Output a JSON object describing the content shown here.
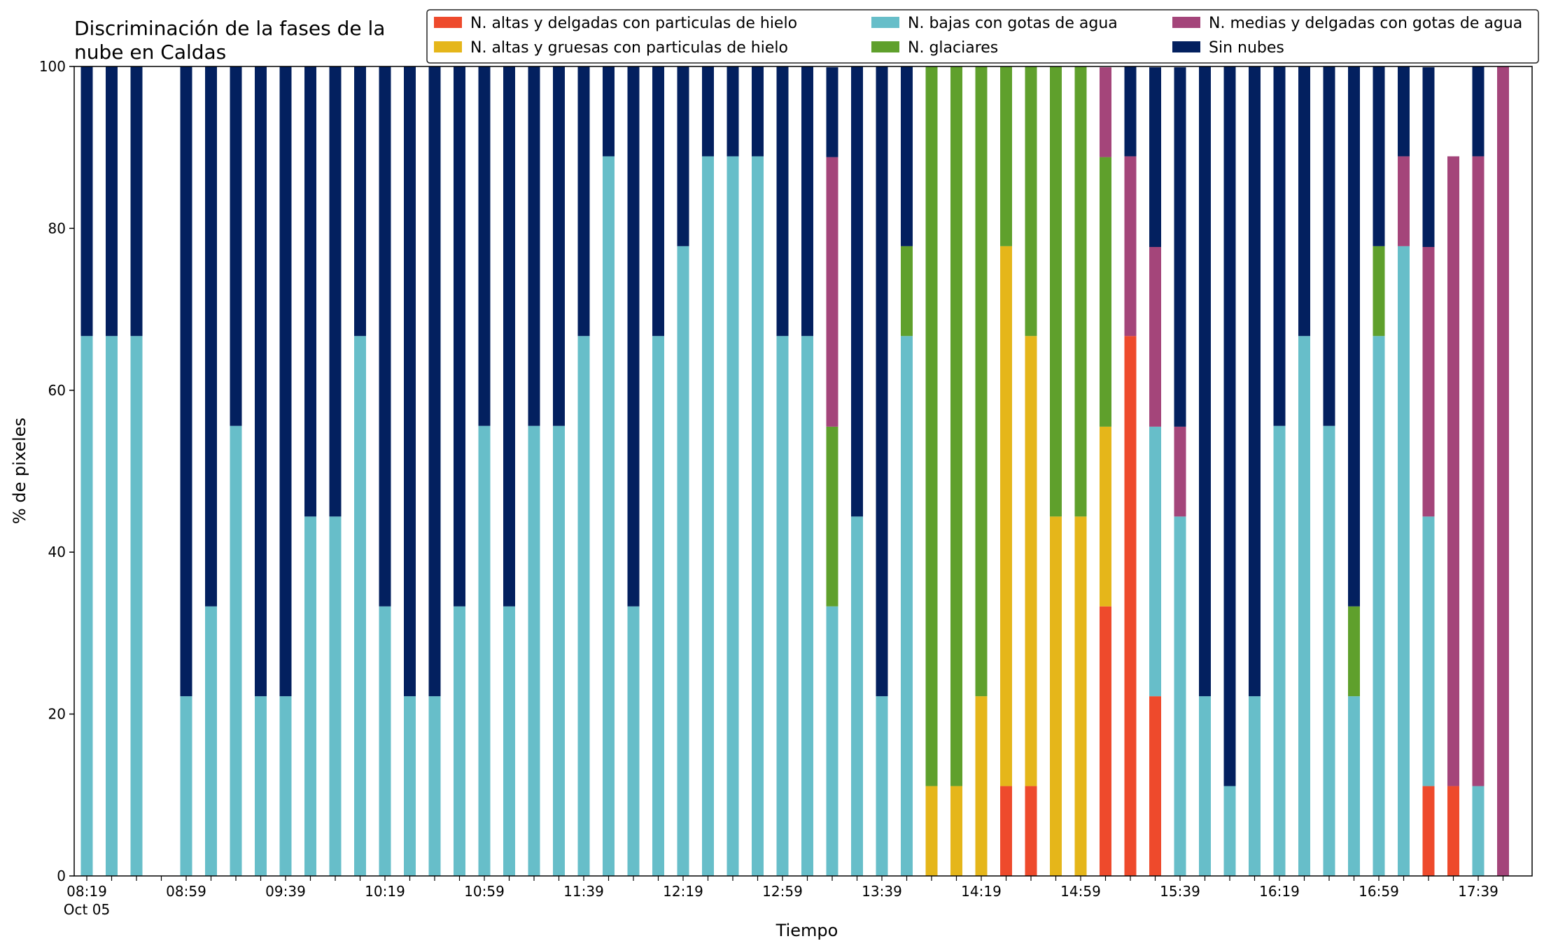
{
  "chart_data": {
    "type": "bar",
    "stacked": true,
    "title_lines": [
      "Discriminación de la fases de la",
      "nube en Caldas"
    ],
    "xlabel": "Tiempo",
    "ylabel": "% de pixeles",
    "ylim": [
      0,
      100
    ],
    "yticks": [
      0,
      20,
      40,
      60,
      80,
      100
    ],
    "xtick_labels": [
      {
        "index": 0,
        "label": "08:19",
        "sublabel": "Oct 05"
      },
      {
        "index": 4,
        "label": "08:59"
      },
      {
        "index": 8,
        "label": "09:39"
      },
      {
        "index": 12,
        "label": "10:19"
      },
      {
        "index": 16,
        "label": "10:59"
      },
      {
        "index": 20,
        "label": "11:39"
      },
      {
        "index": 24,
        "label": "12:19"
      },
      {
        "index": 28,
        "label": "12:59"
      },
      {
        "index": 32,
        "label": "13:39"
      },
      {
        "index": 36,
        "label": "14:19"
      },
      {
        "index": 40,
        "label": "14:59"
      },
      {
        "index": 44,
        "label": "15:39"
      },
      {
        "index": 48,
        "label": "16:19"
      },
      {
        "index": 52,
        "label": "16:59"
      },
      {
        "index": 56,
        "label": "17:39"
      }
    ],
    "categories": [
      "08:19",
      "08:29",
      "08:39",
      "08:49",
      "08:59",
      "09:09",
      "09:19",
      "09:29",
      "09:39",
      "09:49",
      "09:59",
      "10:09",
      "10:19",
      "10:29",
      "10:39",
      "10:49",
      "10:59",
      "11:09",
      "11:19",
      "11:29",
      "11:39",
      "11:49",
      "11:59",
      "12:09",
      "12:19",
      "12:29",
      "12:39",
      "12:49",
      "12:59",
      "13:09",
      "13:19",
      "13:29",
      "13:39",
      "13:49",
      "13:59",
      "14:09",
      "14:19",
      "14:29",
      "14:39",
      "14:49",
      "14:59",
      "15:09",
      "15:19",
      "15:29",
      "15:39",
      "15:49",
      "15:59",
      "16:09",
      "16:19",
      "16:29",
      "16:39",
      "16:49",
      "16:59",
      "17:09",
      "17:19",
      "17:29",
      "17:39",
      "17:49"
    ],
    "legend_position": "top-right",
    "series": [
      {
        "name": "N. altas y delgadas con particulas de hielo",
        "color": "#ee4a2c",
        "values": [
          0,
          0,
          0,
          0,
          0,
          0,
          0,
          0,
          0,
          0,
          0,
          0,
          0,
          0,
          0,
          0,
          0,
          0,
          0,
          0,
          0,
          0,
          0,
          0,
          0,
          0,
          0,
          0,
          0,
          0,
          0,
          0,
          0,
          0,
          0,
          0,
          0,
          11.1,
          11.1,
          0,
          0,
          33.3,
          66.7,
          22.2,
          0,
          0,
          0,
          0,
          0,
          0,
          0,
          0,
          0,
          0,
          11.1,
          11.1,
          0,
          0
        ]
      },
      {
        "name": "N. altas y gruesas con particulas de hielo",
        "color": "#e5b61a",
        "values": [
          0,
          0,
          0,
          0,
          0,
          0,
          0,
          0,
          0,
          0,
          0,
          0,
          0,
          0,
          0,
          0,
          0,
          0,
          0,
          0,
          0,
          0,
          0,
          0,
          0,
          0,
          0,
          0,
          0,
          0,
          0,
          0,
          0,
          0,
          11.1,
          11.1,
          22.2,
          66.7,
          55.6,
          44.4,
          44.4,
          22.2,
          0,
          0,
          0,
          0,
          0,
          0,
          0,
          0,
          0,
          0,
          0,
          0,
          0,
          0,
          0,
          0
        ]
      },
      {
        "name": "N. bajas con gotas de agua",
        "color": "#67bec9",
        "values": [
          66.7,
          66.7,
          66.7,
          0,
          22.2,
          33.3,
          55.6,
          22.2,
          22.2,
          44.4,
          44.4,
          66.7,
          33.3,
          22.2,
          22.2,
          33.3,
          55.6,
          33.3,
          55.6,
          55.6,
          66.7,
          88.9,
          33.3,
          66.7,
          77.8,
          88.9,
          88.9,
          88.9,
          66.7,
          66.7,
          33.3,
          44.4,
          22.2,
          66.7,
          0,
          0,
          0,
          0,
          0,
          0,
          0,
          0,
          0,
          33.3,
          44.4,
          22.2,
          11.1,
          22.2,
          55.6,
          66.7,
          55.6,
          22.2,
          66.7,
          77.8,
          33.3,
          0,
          11.1,
          0
        ]
      },
      {
        "name": "N. glaciares",
        "color": "#5fa02c",
        "values": [
          0,
          0,
          0,
          0,
          0,
          0,
          0,
          0,
          0,
          0,
          0,
          0,
          0,
          0,
          0,
          0,
          0,
          0,
          0,
          0,
          0,
          0,
          0,
          0,
          0,
          0,
          0,
          0,
          0,
          0,
          22.2,
          0,
          0,
          11.1,
          88.9,
          88.9,
          77.8,
          22.2,
          33.3,
          55.6,
          55.6,
          33.3,
          0,
          0,
          0,
          0,
          0,
          0,
          0,
          0,
          0,
          11.1,
          11.1,
          0,
          0,
          0,
          0,
          0
        ]
      },
      {
        "name": "N. medias y delgadas con gotas de agua",
        "color": "#a4457a",
        "values": [
          0,
          0,
          0,
          0,
          0,
          0,
          0,
          0,
          0,
          0,
          0,
          0,
          0,
          0,
          0,
          0,
          0,
          0,
          0,
          0,
          0,
          0,
          0,
          0,
          0,
          0,
          0,
          0,
          0,
          0,
          33.3,
          0,
          0,
          0,
          0,
          0,
          0,
          0,
          0,
          0,
          0,
          11.1,
          22.2,
          22.2,
          11.1,
          0,
          0,
          0,
          0,
          0,
          0,
          0,
          0,
          11.1,
          33.3,
          77.8,
          77.8,
          100
        ]
      },
      {
        "name": "Sin nubes",
        "color": "#03205f",
        "values": [
          33.3,
          33.3,
          33.3,
          0,
          77.8,
          66.7,
          44.4,
          77.8,
          77.8,
          55.6,
          55.6,
          33.3,
          66.7,
          77.8,
          77.8,
          66.7,
          44.4,
          66.7,
          44.4,
          44.4,
          33.3,
          11.1,
          66.7,
          33.3,
          22.2,
          11.1,
          11.1,
          11.1,
          33.3,
          33.3,
          11.1,
          55.6,
          77.8,
          22.2,
          0,
          0,
          0,
          0,
          0,
          0,
          0,
          0,
          11.1,
          22.2,
          44.4,
          77.8,
          88.9,
          77.8,
          44.4,
          33.3,
          44.4,
          66.7,
          22.2,
          11.1,
          22.2,
          0,
          11.1,
          0
        ]
      }
    ]
  }
}
